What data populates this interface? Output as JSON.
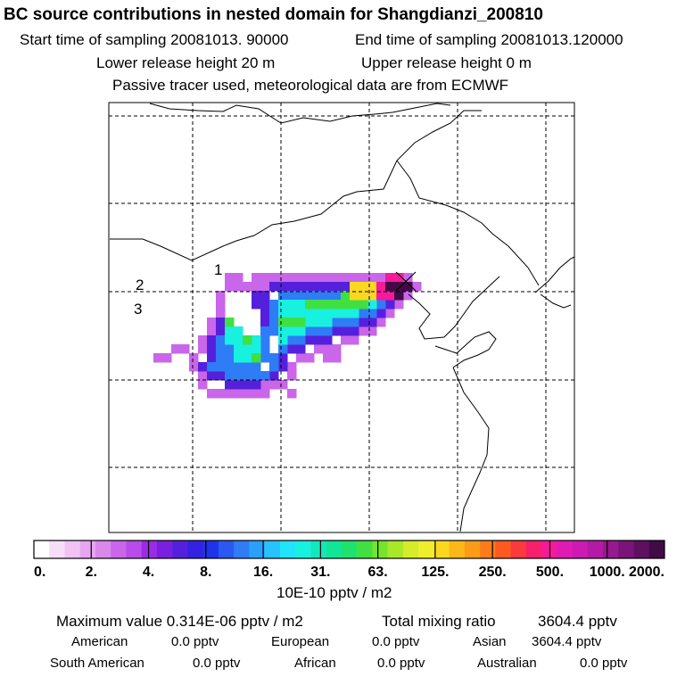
{
  "header": {
    "title": "BC  source contributions in nested domain for Shangdianzi_200810",
    "start_label": "Start time of sampling 20081013. 90000",
    "end_label": "End time of sampling 20081013.120000",
    "lower_label": "Lower release height   20 m",
    "upper_label": "Upper release height    0 m",
    "note": "Passive tracer used, meteorological data are from ECMWF"
  },
  "chart_data": {
    "type": "heatmap",
    "title": "BC  source contributions in nested domain for Shangdianzi_200810",
    "grid": true,
    "labels": [
      "1",
      "2",
      "3"
    ],
    "colorbar": {
      "ticks": [
        "0.",
        "2.",
        "4.",
        "8.",
        "16.",
        "31.",
        "63.",
        "125.",
        "250.",
        "500.",
        "1000.",
        "2000."
      ],
      "unit": "10E-10 pptv / m2",
      "colors": [
        "#ffffff",
        "#f7ddf8",
        "#f1c2f4",
        "#e8a6f0",
        "#d989ec",
        "#c966ea",
        "#b84bea",
        "#9a2be6",
        "#7a1fe0",
        "#5520dc",
        "#3322e0",
        "#1f33e8",
        "#2b58f0",
        "#2e7cf6",
        "#2aa0fb",
        "#28c3fe",
        "#1fe4fb",
        "#18f0e0",
        "#12e8bb",
        "#10e598",
        "#1fe26e",
        "#40e043",
        "#75e42a",
        "#a8e828",
        "#d4ec2a",
        "#f0ee2c",
        "#fbd820",
        "#fcb818",
        "#fc9b18",
        "#fc7c1a",
        "#fc5a1e",
        "#fa3a3c",
        "#f7206c",
        "#f41a99",
        "#e01ab4",
        "#cc1ab2",
        "#b31aa6",
        "#971890",
        "#7a1478",
        "#5e1060",
        "#430a48"
      ]
    },
    "stats": {
      "max_label": "Maximum value  0.314E-06 pptv / m2",
      "total_label": "Total mixing ratio",
      "total_value": "3604.4 pptv"
    },
    "regions": [
      {
        "name": "American",
        "value": "0.0 pptv"
      },
      {
        "name": "European",
        "value": "0.0 pptv"
      },
      {
        "name": "Asian",
        "value": "3604.4 pptv"
      },
      {
        "name": "South American",
        "value": "0.0 pptv"
      },
      {
        "name": "African",
        "value": "0.0 pptv"
      },
      {
        "name": "Australian",
        "value": "0.0 pptv"
      }
    ],
    "plume": [
      {
        "level": 1,
        "cells": [
          [
            13,
            7
          ],
          [
            14,
            7
          ],
          [
            13,
            8
          ],
          [
            14,
            8
          ],
          [
            12,
            9
          ],
          [
            15,
            8
          ],
          [
            16,
            7
          ],
          [
            16,
            8
          ],
          [
            17,
            7
          ],
          [
            17,
            8
          ],
          [
            18,
            7
          ],
          [
            19,
            7
          ],
          [
            20,
            7
          ],
          [
            21,
            7
          ],
          [
            22,
            7
          ],
          [
            23,
            7
          ],
          [
            24,
            7
          ],
          [
            25,
            7
          ],
          [
            26,
            7
          ],
          [
            27,
            7
          ],
          [
            28,
            7
          ],
          [
            29,
            7
          ],
          [
            30,
            7
          ],
          [
            31,
            7
          ],
          [
            32,
            7
          ],
          [
            33,
            7
          ],
          [
            12,
            10
          ],
          [
            12,
            11
          ],
          [
            11,
            12
          ],
          [
            11,
            13
          ],
          [
            10,
            14
          ],
          [
            10,
            15
          ],
          [
            9,
            16
          ],
          [
            9,
            17
          ],
          [
            10,
            18
          ],
          [
            10,
            19
          ],
          [
            11,
            20
          ],
          [
            12,
            20
          ],
          [
            13,
            20
          ],
          [
            14,
            20
          ],
          [
            15,
            20
          ],
          [
            16,
            20
          ],
          [
            17,
            19
          ],
          [
            18,
            19
          ],
          [
            19,
            19
          ],
          [
            20,
            18
          ],
          [
            20,
            17
          ],
          [
            21,
            16
          ],
          [
            22,
            16
          ],
          [
            23,
            15
          ],
          [
            24,
            15
          ],
          [
            25,
            15
          ],
          [
            26,
            14
          ],
          [
            27,
            14
          ],
          [
            28,
            13
          ],
          [
            29,
            13
          ],
          [
            30,
            12
          ],
          [
            31,
            11
          ],
          [
            32,
            10
          ],
          [
            33,
            9
          ],
          [
            34,
            8
          ],
          [
            5,
            16
          ],
          [
            6,
            16
          ],
          [
            7,
            15
          ],
          [
            8,
            15
          ],
          [
            17,
            20
          ],
          [
            20,
            20
          ],
          [
            24,
            16
          ],
          [
            25,
            16
          ]
        ]
      },
      {
        "level": 2,
        "cells": [
          [
            10,
            17
          ],
          [
            11,
            18
          ],
          [
            12,
            18
          ],
          [
            13,
            19
          ],
          [
            14,
            19
          ],
          [
            15,
            19
          ],
          [
            16,
            19
          ],
          [
            18,
            18
          ],
          [
            19,
            17
          ],
          [
            19,
            16
          ],
          [
            20,
            15
          ],
          [
            21,
            15
          ],
          [
            22,
            14
          ],
          [
            23,
            14
          ],
          [
            24,
            14
          ],
          [
            25,
            13
          ],
          [
            26,
            13
          ],
          [
            27,
            13
          ],
          [
            28,
            12
          ],
          [
            29,
            12
          ],
          [
            30,
            11
          ],
          [
            31,
            10
          ],
          [
            32,
            9
          ],
          [
            32,
            8
          ],
          [
            11,
            14
          ],
          [
            11,
            15
          ],
          [
            11,
            16
          ],
          [
            12,
            12
          ],
          [
            12,
            13
          ],
          [
            16,
            9
          ],
          [
            17,
            9
          ],
          [
            18,
            8
          ],
          [
            19,
            8
          ],
          [
            20,
            8
          ],
          [
            21,
            8
          ],
          [
            22,
            8
          ],
          [
            23,
            8
          ],
          [
            24,
            8
          ],
          [
            25,
            8
          ],
          [
            26,
            8
          ],
          [
            27,
            8
          ],
          [
            28,
            8
          ],
          [
            16,
            10
          ],
          [
            17,
            10
          ],
          [
            17,
            11
          ],
          [
            17,
            12
          ]
        ]
      },
      {
        "level": 3,
        "cells": [
          [
            11,
            17
          ],
          [
            12,
            17
          ],
          [
            12,
            16
          ],
          [
            12,
            15
          ],
          [
            12,
            14
          ],
          [
            13,
            18
          ],
          [
            14,
            18
          ],
          [
            15,
            18
          ],
          [
            16,
            18
          ],
          [
            17,
            18
          ],
          [
            18,
            17
          ],
          [
            18,
            16
          ],
          [
            19,
            15
          ],
          [
            20,
            14
          ],
          [
            21,
            14
          ],
          [
            22,
            13
          ],
          [
            23,
            13
          ],
          [
            24,
            13
          ],
          [
            25,
            12
          ],
          [
            26,
            12
          ],
          [
            27,
            12
          ],
          [
            28,
            11
          ],
          [
            29,
            11
          ],
          [
            30,
            10
          ],
          [
            31,
            9
          ],
          [
            18,
            10
          ],
          [
            18,
            11
          ],
          [
            18,
            12
          ],
          [
            18,
            13
          ],
          [
            19,
            9
          ],
          [
            20,
            9
          ],
          [
            21,
            9
          ],
          [
            22,
            9
          ],
          [
            23,
            9
          ],
          [
            24,
            9
          ],
          [
            25,
            9
          ],
          [
            26,
            9
          ],
          [
            27,
            9
          ],
          [
            17,
            13
          ],
          [
            17,
            14
          ],
          [
            17,
            15
          ],
          [
            17,
            16
          ],
          [
            16,
            17
          ],
          [
            15,
            17
          ],
          [
            14,
            17
          ],
          [
            13,
            17
          ],
          [
            13,
            16
          ],
          [
            13,
            15
          ]
        ]
      },
      {
        "level": 4,
        "cells": [
          [
            14,
            15
          ],
          [
            14,
            16
          ],
          [
            15,
            15
          ],
          [
            15,
            16
          ],
          [
            16,
            15
          ],
          [
            16,
            16
          ],
          [
            16,
            14
          ],
          [
            19,
            10
          ],
          [
            19,
            11
          ],
          [
            19,
            12
          ],
          [
            19,
            13
          ],
          [
            19,
            14
          ],
          [
            20,
            10
          ],
          [
            20,
            11
          ],
          [
            20,
            12
          ],
          [
            20,
            13
          ],
          [
            21,
            10
          ],
          [
            21,
            11
          ],
          [
            21,
            12
          ],
          [
            21,
            13
          ],
          [
            22,
            10
          ],
          [
            22,
            11
          ],
          [
            22,
            12
          ],
          [
            23,
            10
          ],
          [
            23,
            11
          ],
          [
            23,
            12
          ],
          [
            24,
            10
          ],
          [
            24,
            11
          ],
          [
            24,
            12
          ],
          [
            25,
            10
          ],
          [
            25,
            11
          ],
          [
            26,
            10
          ],
          [
            26,
            11
          ],
          [
            27,
            10
          ],
          [
            27,
            11
          ],
          [
            28,
            10
          ],
          [
            28,
            9
          ],
          [
            29,
            9
          ],
          [
            29,
            10
          ],
          [
            30,
            9
          ],
          [
            30,
            8
          ],
          [
            29,
            8
          ],
          [
            13,
            12
          ],
          [
            13,
            13
          ],
          [
            13,
            14
          ],
          [
            14,
            13
          ],
          [
            14,
            14
          ]
        ]
      },
      {
        "level": 5,
        "cells": [
          [
            22,
            10
          ],
          [
            23,
            10
          ],
          [
            24,
            10
          ],
          [
            25,
            10
          ],
          [
            26,
            10
          ],
          [
            27,
            10
          ],
          [
            26,
            9
          ],
          [
            27,
            9
          ],
          [
            28,
            9
          ],
          [
            28,
            10
          ],
          [
            29,
            9
          ],
          [
            30,
            9
          ],
          [
            31,
            8
          ],
          [
            19,
            12
          ],
          [
            20,
            12
          ],
          [
            21,
            12
          ],
          [
            16,
            16
          ],
          [
            13,
            12
          ],
          [
            15,
            14
          ]
        ]
      },
      {
        "level": 6,
        "cells": [
          [
            27,
            9
          ],
          [
            28,
            9
          ],
          [
            29,
            9
          ],
          [
            30,
            8
          ],
          [
            31,
            8
          ],
          [
            29,
            8
          ],
          [
            28,
            8
          ],
          [
            30,
            9
          ],
          [
            27,
            8
          ]
        ]
      },
      {
        "level": 7,
        "cells": [
          [
            30,
            8
          ],
          [
            31,
            8
          ],
          [
            32,
            8
          ],
          [
            31,
            9
          ],
          [
            30,
            9
          ],
          [
            32,
            9
          ],
          [
            31,
            7
          ],
          [
            32,
            7
          ]
        ]
      },
      {
        "level": 8,
        "cells": [
          [
            32,
            8
          ],
          [
            31,
            8
          ],
          [
            32,
            9
          ],
          [
            33,
            8
          ]
        ]
      }
    ]
  }
}
